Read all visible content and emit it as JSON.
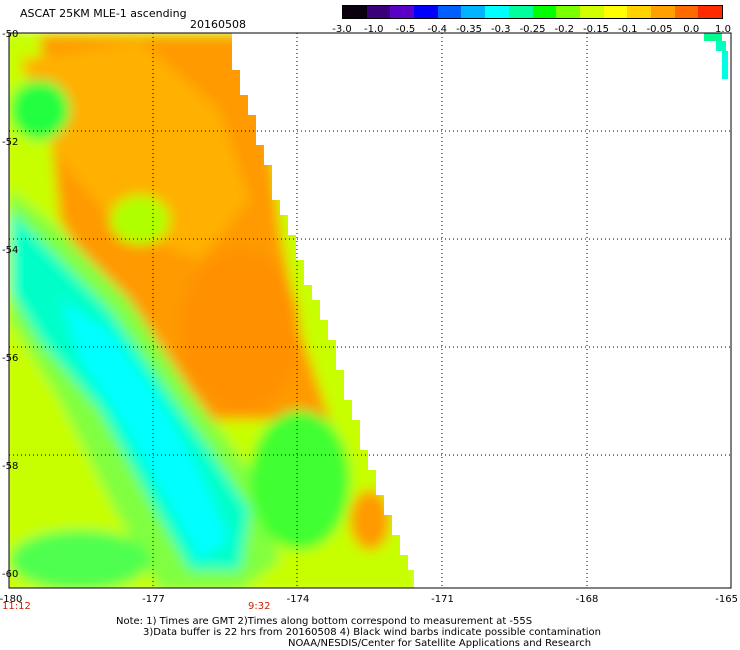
{
  "title": "ASCAT 25KM MLE-1 ascending",
  "date": "20160508",
  "colorbar": {
    "labels": [
      "-3.0",
      "-1.0",
      "-0.5",
      "-0.4",
      "-0.35",
      "-0.3",
      "-0.25",
      "-0.2",
      "-0.15",
      "-0.1",
      "-0.05",
      "0.0",
      "1.0"
    ],
    "colors": [
      "#0a0010",
      "#3a0078",
      "#5a00c8",
      "#0000ff",
      "#0060ff",
      "#00b4ff",
      "#00ffff",
      "#00ff9c",
      "#00ff00",
      "#78ff00",
      "#d2ff00",
      "#ffff00",
      "#ffd200",
      "#ffa000",
      "#ff6a00",
      "#ff2a00"
    ]
  },
  "axes": {
    "lat_labels": [
      "-50",
      "-52",
      "-54",
      "-56",
      "-58",
      "-60"
    ],
    "lon_labels": [
      "-180",
      "-177",
      "-174",
      "-171",
      "-168",
      "-165"
    ]
  },
  "times": [
    "11:12",
    "9:32"
  ],
  "notes": [
    "Note: 1) Times are GMT 2)Times along bottom correspond to measurement at -55S",
    "3)Data buffer is 22 hrs from 20160508 4) Black wind barbs indicate possible contamination",
    "NOAA/NESDIS/Center for Satellite Applications and Research"
  ]
}
